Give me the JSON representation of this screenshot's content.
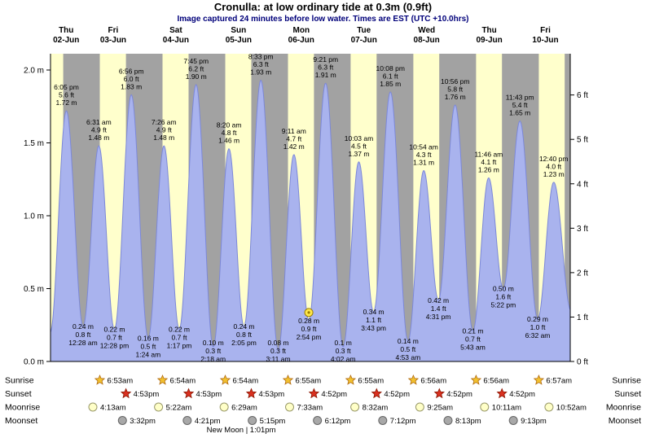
{
  "chart_data": {
    "type": "area",
    "title": "Cronulla: at low  ordinary tide at 0.3m (0.9ft)",
    "subtitle": "Image captured 24 minutes before low water. Times are EST (UTC +10.0hrs)",
    "days": [
      {
        "dow": "Thu",
        "date": "02-Jun"
      },
      {
        "dow": "Fri",
        "date": "03-Jun"
      },
      {
        "dow": "Sat",
        "date": "04-Jun"
      },
      {
        "dow": "Sun",
        "date": "05-Jun"
      },
      {
        "dow": "Mon",
        "date": "06-Jun"
      },
      {
        "dow": "Tue",
        "date": "07-Jun"
      },
      {
        "dow": "Wed",
        "date": "08-Jun"
      },
      {
        "dow": "Thu",
        "date": "09-Jun"
      },
      {
        "dow": "Fri",
        "date": "10-Jun"
      }
    ],
    "axis": {
      "y_left_ticks": [
        "0.0 m",
        "0.5 m",
        "1.0 m",
        "1.5 m",
        "2.0 m"
      ],
      "y_left_step_m": 0.5,
      "y_right_ticks": [
        "0 ft",
        "1 ft",
        "2 ft",
        "3 ft",
        "4 ft",
        "5 ft",
        "6 ft"
      ],
      "y_right_step_m": 0.3048
    },
    "time_range_h": [
      12,
      211
    ],
    "edge_anchors": [
      {
        "t_h": 11.9,
        "m": 0.2
      },
      {
        "t_h": 211.3,
        "m": 0.35
      }
    ],
    "tide_events": [
      {
        "day": 0,
        "time": "6:05 pm",
        "ft": "5.6 ft",
        "m": "1.72 m",
        "type": "high"
      },
      {
        "day": 1,
        "time": "12:28 am",
        "m": "0.24 m",
        "ft": "0.8 ft",
        "type": "low"
      },
      {
        "day": 1,
        "time": "6:31 am",
        "ft": "4.9 ft",
        "m": "1.48 m",
        "type": "high"
      },
      {
        "day": 1,
        "time": "12:28 pm",
        "m": "0.22 m",
        "ft": "0.7 ft",
        "type": "low"
      },
      {
        "day": 1,
        "time": "6:56 pm",
        "ft": "6.0 ft",
        "m": "1.83 m",
        "type": "high"
      },
      {
        "day": 2,
        "time": "1:24 am",
        "m": "0.16 m",
        "ft": "0.5 ft",
        "type": "low"
      },
      {
        "day": 2,
        "time": "7:26 am",
        "ft": "4.9 ft",
        "m": "1.48 m",
        "type": "high"
      },
      {
        "day": 2,
        "time": "1:17 pm",
        "m": "0.22 m",
        "ft": "0.7 ft",
        "type": "low"
      },
      {
        "day": 2,
        "time": "7:45 pm",
        "ft": "6.2 ft",
        "m": "1.90 m",
        "type": "high"
      },
      {
        "day": 3,
        "time": "2:18 am",
        "m": "0.10 m",
        "ft": "0.3 ft",
        "type": "low"
      },
      {
        "day": 3,
        "time": "8:20 am",
        "ft": "4.8 ft",
        "m": "1.46 m",
        "type": "high"
      },
      {
        "day": 3,
        "time": "2:05 pm",
        "m": "0.24 m",
        "ft": "0.8 ft",
        "type": "low"
      },
      {
        "day": 3,
        "time": "8:33 pm",
        "ft": "6.3 ft",
        "m": "1.93 m",
        "type": "high"
      },
      {
        "day": 4,
        "time": "3:11 am",
        "m": "0.08 m",
        "ft": "0.3 ft",
        "type": "low"
      },
      {
        "day": 4,
        "time": "9:11 am",
        "ft": "4.7 ft",
        "m": "1.42 m",
        "type": "high"
      },
      {
        "day": 4,
        "time": "2:54 pm",
        "m": "0.28 m",
        "ft": "0.9 ft",
        "type": "low",
        "marker": true
      },
      {
        "day": 4,
        "time": "9:21 pm",
        "ft": "6.3 ft",
        "m": "1.91 m",
        "type": "high"
      },
      {
        "day": 5,
        "time": "4:02 am",
        "m": "0.1 m",
        "ft": "0.3 ft",
        "type": "low"
      },
      {
        "day": 5,
        "time": "10:03 am",
        "ft": "4.5 ft",
        "m": "1.37 m",
        "type": "high"
      },
      {
        "day": 5,
        "time": "3:43 pm",
        "m": "0.34 m",
        "ft": "1.1 ft",
        "type": "low"
      },
      {
        "day": 5,
        "time": "10:08 pm",
        "ft": "6.1 ft",
        "m": "1.85 m",
        "type": "high"
      },
      {
        "day": 6,
        "time": "4:53 am",
        "m": "0.14 m",
        "ft": "0.5 ft",
        "type": "low"
      },
      {
        "day": 6,
        "time": "10:54 am",
        "ft": "4.3 ft",
        "m": "1.31 m",
        "type": "high"
      },
      {
        "day": 6,
        "time": "4:31 pm",
        "m": "0.42 m",
        "ft": "1.4 ft",
        "type": "low"
      },
      {
        "day": 6,
        "time": "10:56 pm",
        "ft": "5.8 ft",
        "m": "1.76 m",
        "type": "high"
      },
      {
        "day": 7,
        "time": "5:43 am",
        "m": "0.21 m",
        "ft": "0.7 ft",
        "type": "low"
      },
      {
        "day": 7,
        "time": "11:46 am",
        "ft": "4.1 ft",
        "m": "1.26 m",
        "type": "high"
      },
      {
        "day": 7,
        "time": "5:22 pm",
        "m": "0.50 m",
        "ft": "1.6 ft",
        "type": "low"
      },
      {
        "day": 7,
        "time": "11:43 pm",
        "ft": "5.4 ft",
        "m": "1.65 m",
        "type": "high"
      },
      {
        "day": 8,
        "time": "6:32 am",
        "m": "0.29 m",
        "ft": "1.0 ft",
        "type": "low"
      },
      {
        "day": 8,
        "time": "12:40 pm",
        "ft": "4.0 ft",
        "m": "1.23 m",
        "type": "high"
      }
    ],
    "sun_moon": [
      {
        "id": "sunrise",
        "label": "Sunrise",
        "icon": "star",
        "entries": [
          {
            "day": 1,
            "time": "6:53am"
          },
          {
            "day": 2,
            "time": "6:54am"
          },
          {
            "day": 3,
            "time": "6:54am"
          },
          {
            "day": 4,
            "time": "6:55am"
          },
          {
            "day": 5,
            "time": "6:55am"
          },
          {
            "day": 6,
            "time": "6:56am"
          },
          {
            "day": 7,
            "time": "6:56am"
          },
          {
            "day": 8,
            "time": "6:57am"
          }
        ]
      },
      {
        "id": "sunset",
        "label": "Sunset",
        "icon": "star",
        "entries": [
          {
            "day": 1,
            "time": "4:53pm"
          },
          {
            "day": 2,
            "time": "4:53pm"
          },
          {
            "day": 3,
            "time": "4:53pm"
          },
          {
            "day": 4,
            "time": "4:52pm"
          },
          {
            "day": 5,
            "time": "4:52pm"
          },
          {
            "day": 6,
            "time": "4:52pm"
          },
          {
            "day": 7,
            "time": "4:52pm"
          }
        ]
      },
      {
        "id": "moonrise",
        "label": "Moonrise",
        "icon": "circle",
        "entries": [
          {
            "day": 1,
            "time": "4:13am"
          },
          {
            "day": 2,
            "time": "5:22am"
          },
          {
            "day": 3,
            "time": "6:29am"
          },
          {
            "day": 4,
            "time": "7:33am"
          },
          {
            "day": 5,
            "time": "8:32am"
          },
          {
            "day": 6,
            "time": "9:25am"
          },
          {
            "day": 7,
            "time": "10:11am"
          },
          {
            "day": 8,
            "time": "10:52am"
          }
        ]
      },
      {
        "id": "moonset",
        "label": "Moonset",
        "icon": "circle",
        "entries": [
          {
            "day": 1,
            "time": "3:32pm"
          },
          {
            "day": 2,
            "time": "4:21pm"
          },
          {
            "day": 3,
            "time": "5:15pm"
          },
          {
            "day": 4,
            "time": "6:12pm"
          },
          {
            "day": 5,
            "time": "7:12pm"
          },
          {
            "day": 6,
            "time": "8:13pm"
          },
          {
            "day": 7,
            "time": "9:13pm"
          }
        ]
      }
    ],
    "new_moon": {
      "text": "New Moon | 1:01pm",
      "day": 3,
      "time": "1:01pm"
    },
    "colors": {
      "night_band": "#a2a2a2",
      "day_band": "#ffffcc",
      "tide_fill": "#a9b3ee",
      "tide_stroke": "#7c88d8",
      "date_red": "#d40000",
      "subtitle_navy": "#00007a",
      "sunrise_star": "#f2c12e",
      "sunrise_star_edge": "#b06a10",
      "sunset_star": "#d93020",
      "sunset_star_edge": "#8a1500",
      "moonrise_circle": "#ffffc8",
      "moonrise_edge": "#99996a",
      "moonset_circle": "#a8a8a8",
      "moonset_edge": "#666666",
      "marker_fill": "#ffe84a",
      "marker_edge": "#9a7d00"
    }
  }
}
